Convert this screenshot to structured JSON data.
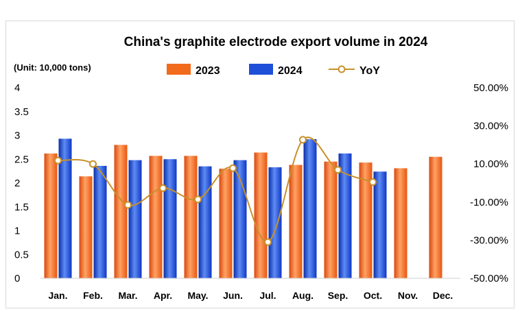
{
  "chart_data": {
    "type": "bar",
    "title": "China's graphite electrode export volume in 2024",
    "unit_label": "(Unit: 10,000 tons)",
    "categories": [
      "Jan.",
      "Feb.",
      "Mar.",
      "Apr.",
      "May.",
      "Jun.",
      "Jul.",
      "Aug.",
      "Sep.",
      "Oct.",
      "Nov.",
      "Dec."
    ],
    "series": [
      {
        "name": "2023",
        "type": "bar",
        "axis": "left",
        "color": "#f26a1b",
        "values": [
          2.62,
          2.14,
          2.8,
          2.57,
          2.57,
          2.3,
          2.64,
          2.38,
          2.45,
          2.43,
          2.31,
          2.55
        ]
      },
      {
        "name": "2024",
        "type": "bar",
        "axis": "left",
        "color": "#1e4fd8",
        "values": [
          2.93,
          2.36,
          2.48,
          2.5,
          2.35,
          2.48,
          2.33,
          2.92,
          2.62,
          2.24,
          null,
          null
        ]
      },
      {
        "name": "YoY",
        "type": "line",
        "axis": "right",
        "color": "#c8902a",
        "values": [
          11.8,
          10.0,
          -11.5,
          -2.7,
          -8.6,
          7.8,
          -31.0,
          22.7,
          6.9,
          0.5,
          null,
          null
        ]
      }
    ],
    "left_axis": {
      "ylim": [
        0,
        4
      ],
      "ticks": [
        "0",
        "0.5",
        "1",
        "1.5",
        "2",
        "2.5",
        "3",
        "3.5",
        "4"
      ]
    },
    "right_axis": {
      "ylim": [
        -50,
        50
      ],
      "ticks": [
        "-50.00%",
        "-30.00%",
        "-10.00%",
        "10.00%",
        "30.00%",
        "50.00%"
      ]
    },
    "legend_position": "top",
    "grid": false
  }
}
